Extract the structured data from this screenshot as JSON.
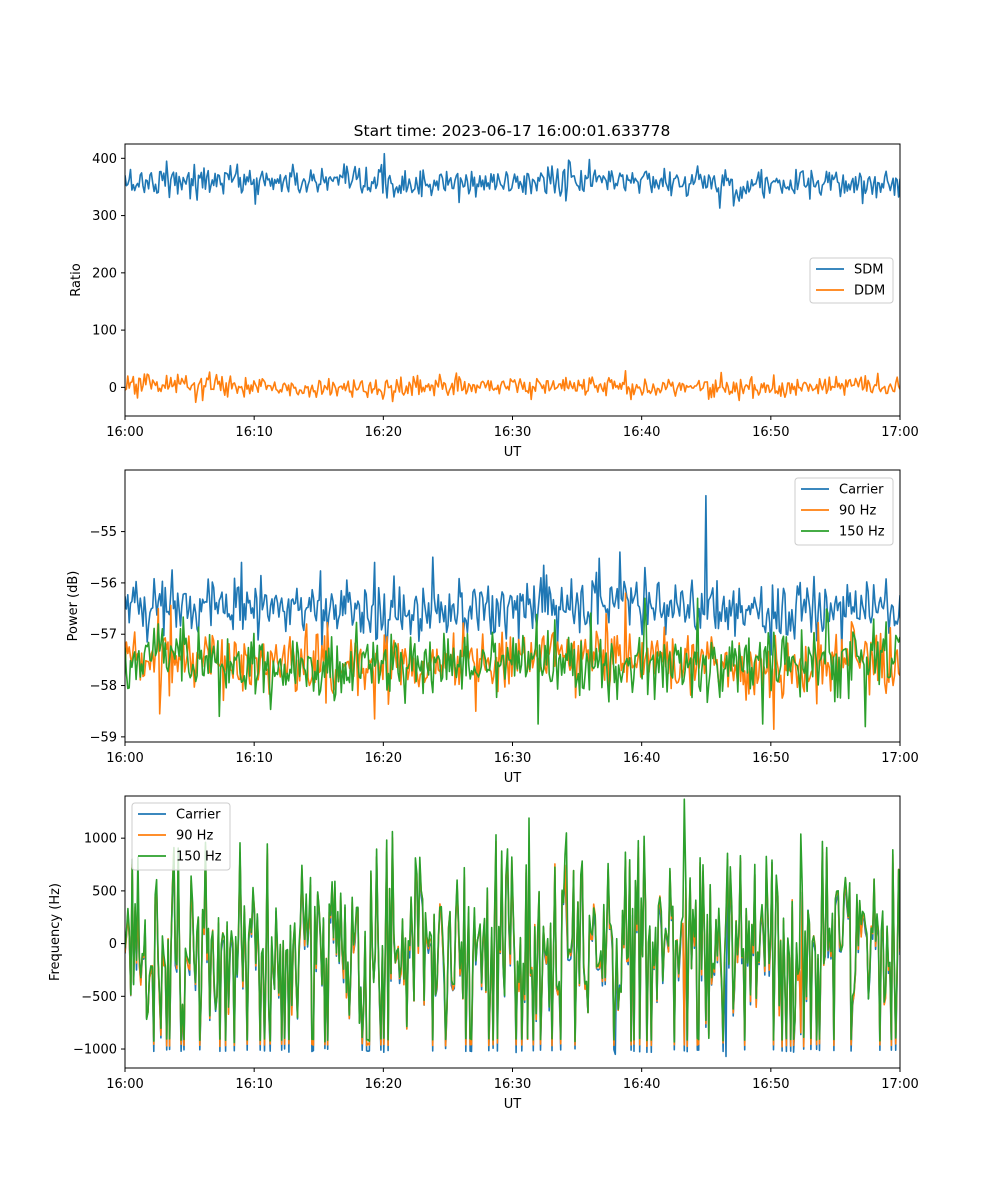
{
  "figure_title": "Start time: 2023-06-17 16:00:01.633778",
  "chart_data": [
    {
      "type": "line",
      "xlabel": "UT",
      "ylabel": "Ratio",
      "x_ticks": [
        "16:00",
        "16:10",
        "16:20",
        "16:30",
        "16:40",
        "16:50",
        "17:00"
      ],
      "xlim": [
        0,
        60
      ],
      "ylim": [
        -50,
        425
      ],
      "y_ticks": [
        0,
        100,
        200,
        300,
        400
      ],
      "legend_position": "center-right",
      "series": [
        {
          "name": "SDM",
          "color": "#1f77b4",
          "mean": 358,
          "amplitude": 13,
          "noise": "fine",
          "spikes": [
            [
              20.1,
              408
            ],
            [
              5.6,
              327
            ],
            [
              10.1,
              320
            ],
            [
              46.0,
              313
            ],
            [
              47.1,
              317
            ],
            [
              3.2,
              395
            ]
          ]
        },
        {
          "name": "DDM",
          "color": "#ff7f0e",
          "mean": 1,
          "amplitude": 9,
          "noise": "fine",
          "spikes": [
            [
              5.5,
              -26
            ],
            [
              25.7,
              25
            ],
            [
              38.8,
              29
            ],
            [
              46.2,
              26
            ],
            [
              31.5,
              -21
            ],
            [
              48.6,
              -19
            ]
          ]
        }
      ]
    },
    {
      "type": "line",
      "xlabel": "UT",
      "ylabel": "Power (dB)",
      "x_ticks": [
        "16:00",
        "16:10",
        "16:20",
        "16:30",
        "16:40",
        "16:50",
        "17:00"
      ],
      "xlim": [
        0,
        60
      ],
      "ylim": [
        -59.1,
        -53.8
      ],
      "y_ticks": [
        -55,
        -56,
        -57,
        -58,
        -59
      ],
      "legend_position": "top-right",
      "series": [
        {
          "name": "Carrier",
          "color": "#1f77b4",
          "mean": -56.5,
          "amplitude": 0.28,
          "noise": "fine",
          "spikes": [
            [
              45.0,
              -54.3
            ],
            [
              38.3,
              -55.4
            ],
            [
              40.3,
              -55.7
            ],
            [
              19.3,
              -55.6
            ],
            [
              23.8,
              -55.5
            ],
            [
              9.0,
              -55.6
            ],
            [
              50.0,
              -57.4
            ],
            [
              55.5,
              -57.3
            ]
          ]
        },
        {
          "name": "90 Hz",
          "color": "#ff7f0e",
          "mean": -57.55,
          "amplitude": 0.32,
          "noise": "fine",
          "spikes": [
            [
              50.2,
              -58.85
            ],
            [
              19.3,
              -58.65
            ],
            [
              2.7,
              -58.55
            ],
            [
              27.2,
              -58.5
            ],
            [
              37.2,
              -56.6
            ],
            [
              38.8,
              -56.2
            ]
          ]
        },
        {
          "name": "150 Hz",
          "color": "#2ca02c",
          "mean": -57.55,
          "amplitude": 0.32,
          "noise": "fine",
          "spikes": [
            [
              7.3,
              -58.6
            ],
            [
              32.0,
              -58.75
            ],
            [
              49.4,
              -58.75
            ],
            [
              57.3,
              -58.8
            ],
            [
              40.3,
              -56.3
            ],
            [
              44.3,
              -56.3
            ]
          ]
        }
      ]
    },
    {
      "type": "line",
      "xlabel": "UT",
      "ylabel": "Frequency (Hz)",
      "x_ticks": [
        "16:00",
        "16:10",
        "16:20",
        "16:30",
        "16:40",
        "16:50",
        "17:00"
      ],
      "xlim": [
        0,
        60
      ],
      "ylim": [
        -1180,
        1400
      ],
      "y_ticks": [
        1000,
        500,
        0,
        -500,
        -1000
      ],
      "legend_position": "top-left",
      "series": [
        {
          "name": "Carrier",
          "color": "#1f77b4",
          "mean": -60,
          "amplitude": 430,
          "noise": "coarse",
          "spikes": [
            [
              46.5,
              -1070
            ],
            [
              38.0,
              -1050
            ]
          ]
        },
        {
          "name": "90 Hz",
          "color": "#ff7f0e",
          "mean": -30,
          "amplitude": 440,
          "noise": "coarse",
          "spikes": []
        },
        {
          "name": "150 Hz",
          "color": "#2ca02c",
          "mean": 0,
          "amplitude": 450,
          "noise": "coarse",
          "spikes": [
            [
              43.3,
              1370
            ],
            [
              31.3,
              1190
            ],
            [
              34.2,
              1050
            ],
            [
              52.3,
              1040
            ],
            [
              1.0,
              820
            ]
          ]
        }
      ]
    }
  ]
}
